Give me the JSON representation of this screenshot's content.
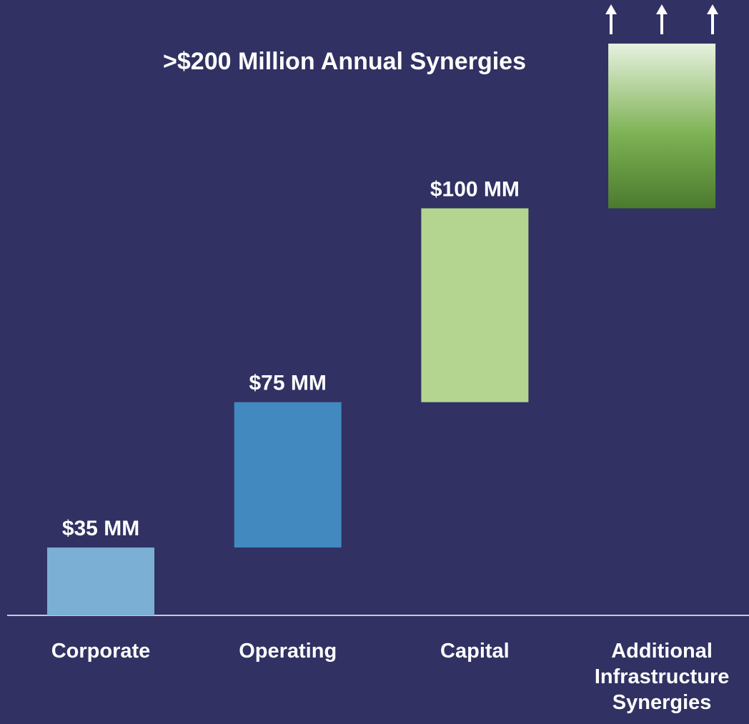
{
  "chart_data": {
    "type": "waterfall",
    "title": ">$200 Million Annual Synergies",
    "categories": [
      "Corporate",
      "Operating",
      "Capital",
      "Additional Infrastructure Synergies"
    ],
    "values": [
      35,
      75,
      100,
      85
    ],
    "value_labels": [
      "$35 MM",
      "$75 MM",
      "$100 MM",
      null
    ],
    "colors": [
      "#7bafd4",
      "#4189bf",
      "#b3d58f",
      "#7eb254"
    ]
  }
}
